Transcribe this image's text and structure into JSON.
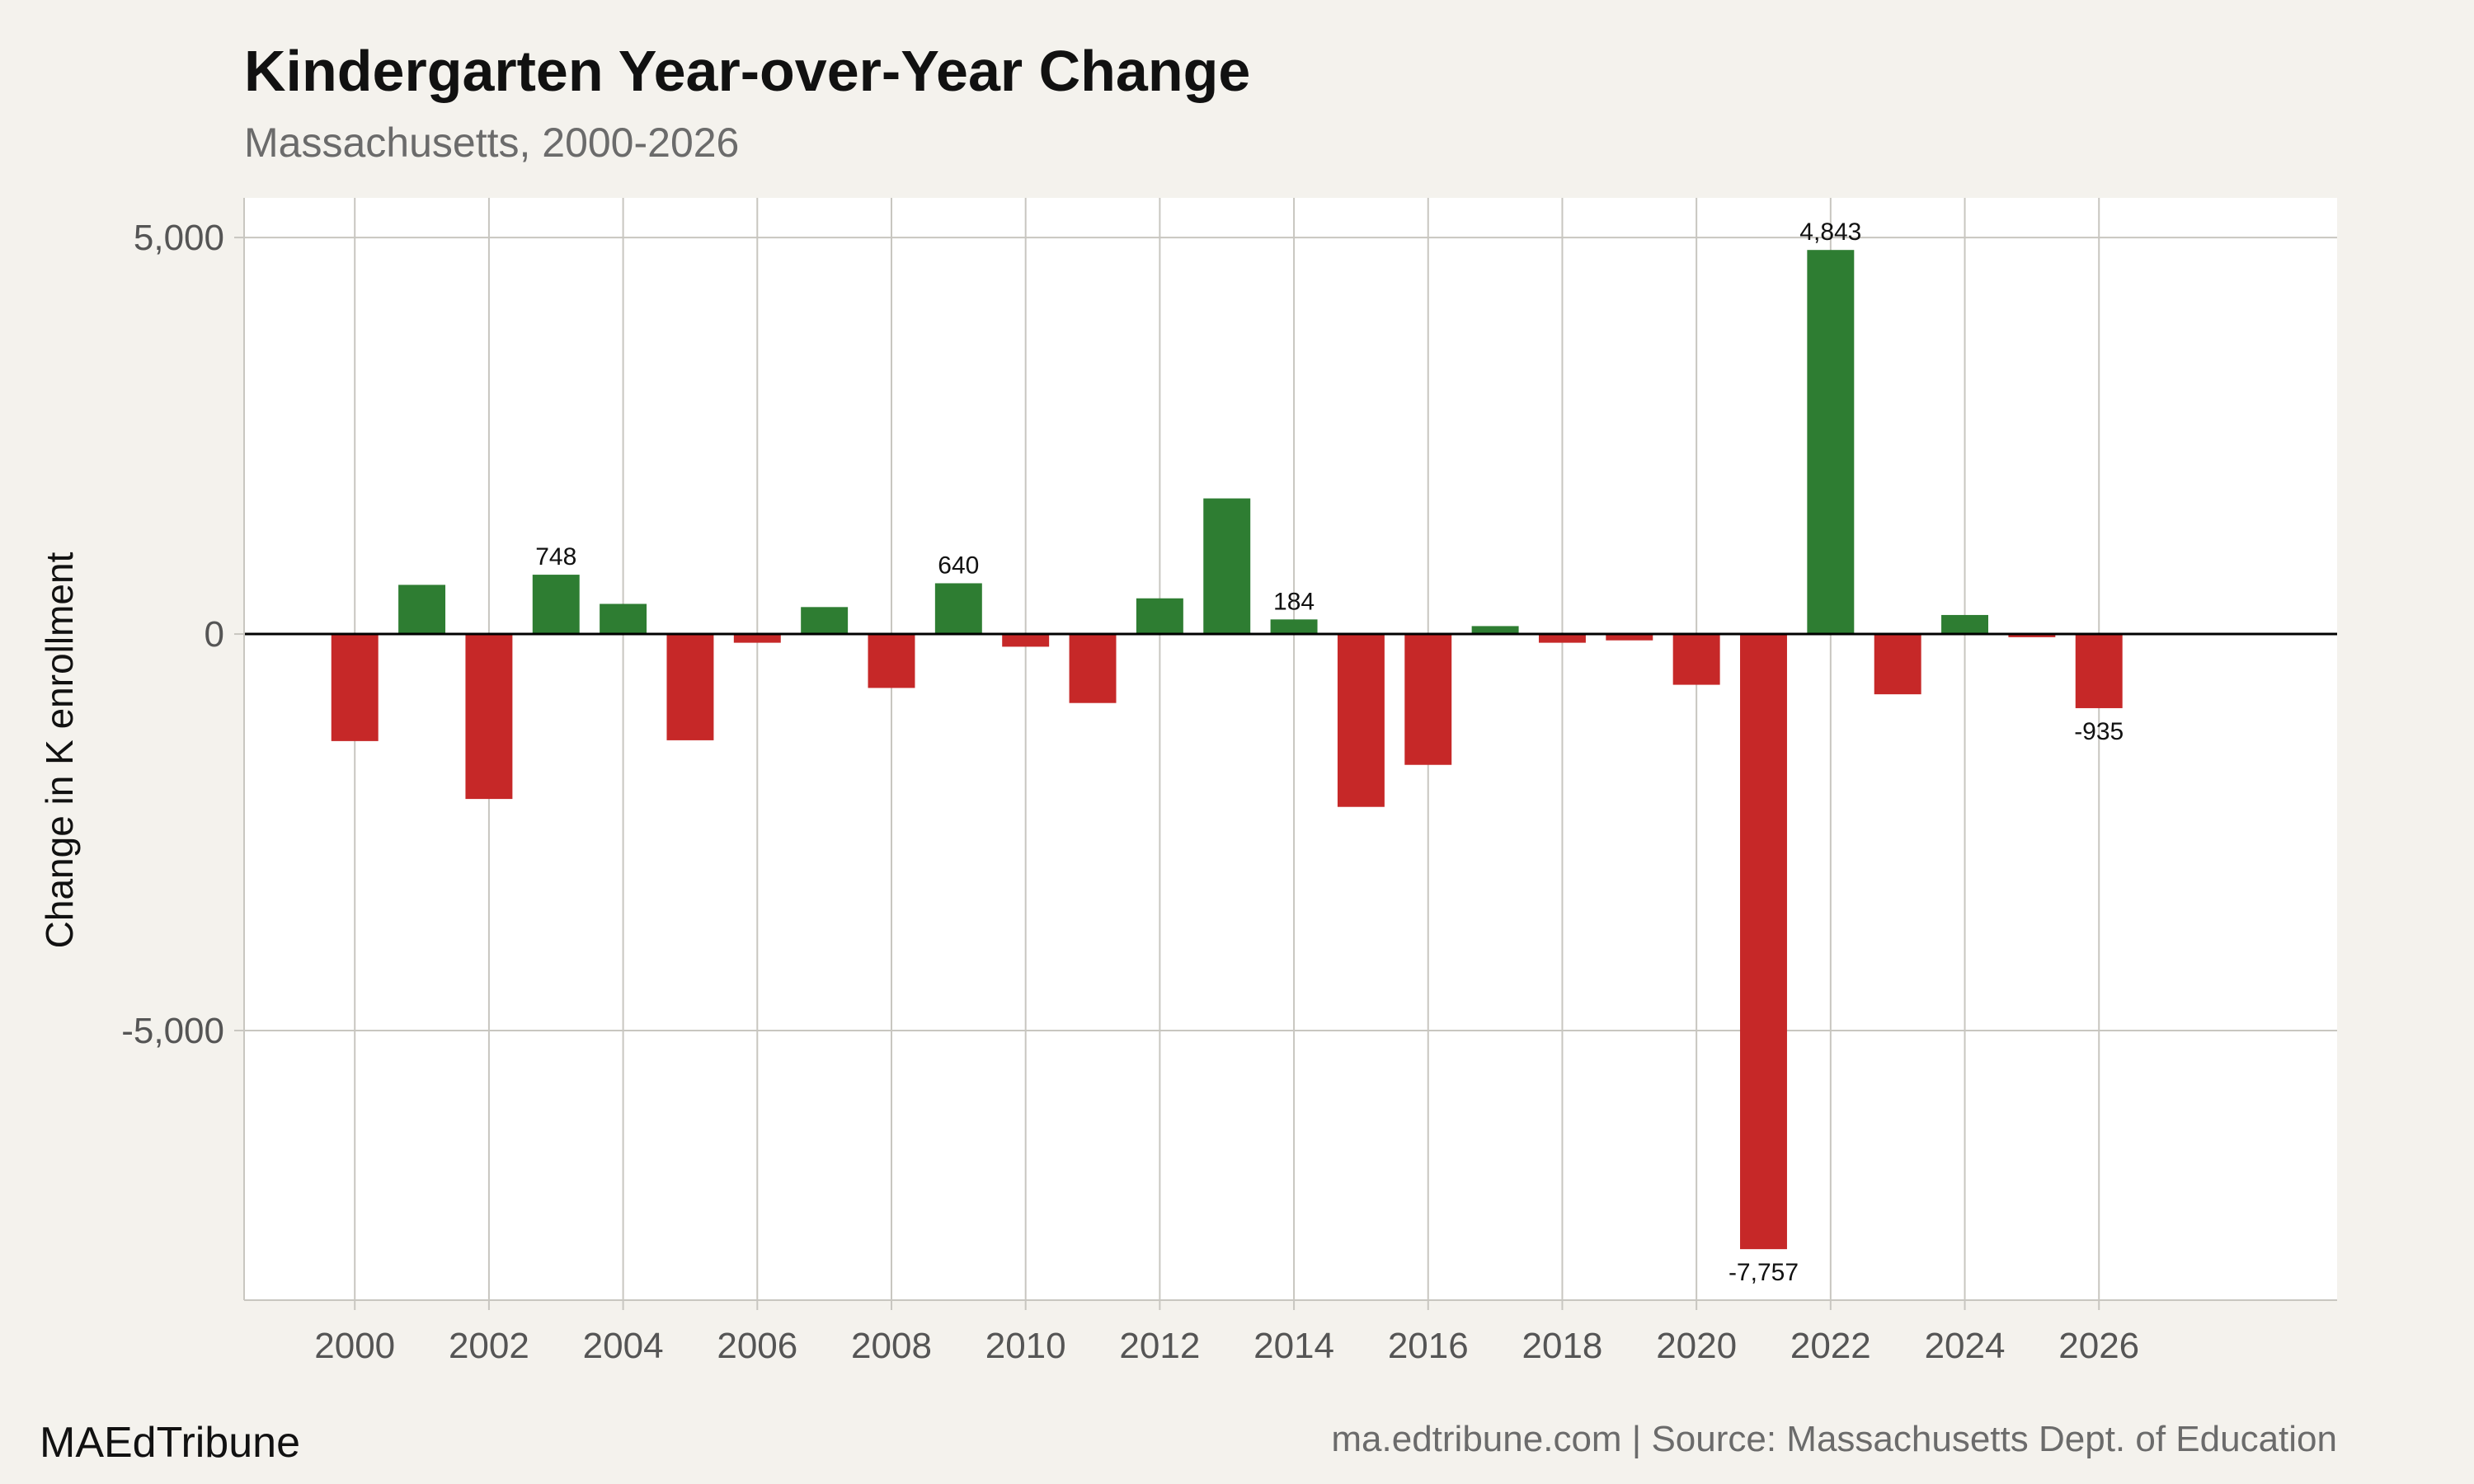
{
  "title": "Kindergarten Year-over-Year Change",
  "subtitle": "Massachusetts, 2000-2026",
  "footer": {
    "brand": "MAEdTribune",
    "source": "ma.edtribune.com | Source: Massachusetts Dept. of Education"
  },
  "colors": {
    "background": "#f4f2ed",
    "panel": "#ffffff",
    "grid": "#c8c6c0",
    "positive": "#2e7d32",
    "negative": "#c62828",
    "zero_line": "#000000"
  },
  "chart_data": {
    "type": "bar",
    "title": "Kindergarten Year-over-Year Change",
    "subtitle": "Massachusetts, 2000-2026",
    "xlabel": "",
    "ylabel": "Change in K enrollment",
    "x": [
      2000,
      2001,
      2002,
      2003,
      2004,
      2005,
      2006,
      2007,
      2008,
      2009,
      2010,
      2011,
      2012,
      2013,
      2014,
      2015,
      2016,
      2017,
      2018,
      2019,
      2020,
      2021,
      2022,
      2023,
      2024,
      2025,
      2026
    ],
    "values": [
      -1350,
      620,
      -2080,
      748,
      380,
      -1340,
      -110,
      340,
      -680,
      640,
      -160,
      -870,
      450,
      1710,
      184,
      -2180,
      -1650,
      100,
      -110,
      -80,
      -640,
      -7757,
      4843,
      -760,
      240,
      -40,
      -935
    ],
    "xticks": [
      2000,
      2002,
      2004,
      2006,
      2008,
      2010,
      2012,
      2014,
      2016,
      2018,
      2020,
      2022,
      2024,
      2026
    ],
    "yticks": [
      -5000,
      0,
      5000
    ],
    "ytick_labels": [
      "-5,000",
      "0",
      "5,000"
    ],
    "xlim": [
      1998.35,
      2029.55
    ],
    "ylim": [
      -8400,
      5500
    ],
    "grid": true,
    "labeled_points": [
      {
        "x": 2003,
        "label": "748"
      },
      {
        "x": 2009,
        "label": "640"
      },
      {
        "x": 2014,
        "label": "184"
      },
      {
        "x": 2021,
        "label": "-7,757"
      },
      {
        "x": 2022,
        "label": "4,843"
      },
      {
        "x": 2026,
        "label": "-935"
      }
    ]
  }
}
